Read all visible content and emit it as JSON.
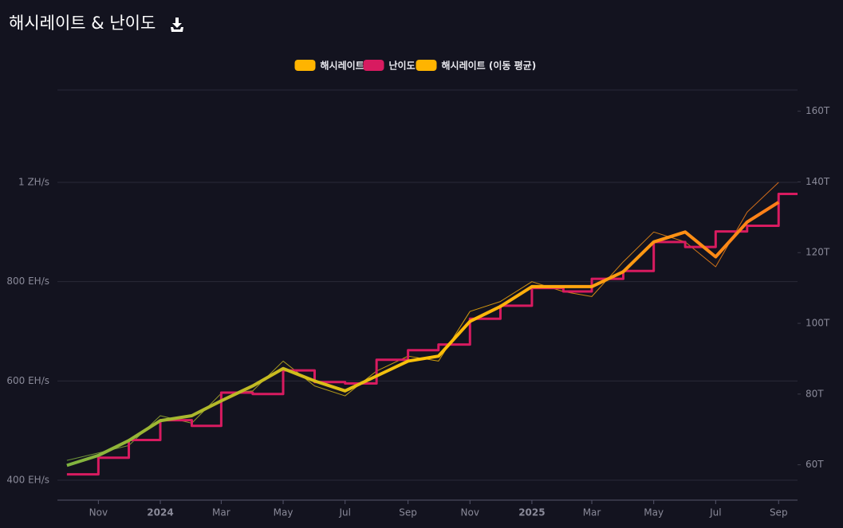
{
  "chart_data": {
    "type": "line",
    "title": "해시레이트 & 난이도",
    "x": [
      "2023-10",
      "2023-11",
      "2023-12",
      "2024-01",
      "2024-02",
      "2024-03",
      "2024-04",
      "2024-05",
      "2024-06",
      "2024-07",
      "2024-08",
      "2024-09",
      "2024-10",
      "2024-11",
      "2024-12",
      "2025-01",
      "2025-02",
      "2025-03",
      "2025-04",
      "2025-05",
      "2025-06",
      "2025-07",
      "2025-08",
      "2025-09"
    ],
    "series": [
      {
        "name": "해시레이트",
        "color": "#ffb400",
        "width": 1,
        "values": [
          440,
          455,
          470,
          530,
          515,
          575,
          580,
          640,
          590,
          570,
          620,
          650,
          640,
          740,
          760,
          800,
          780,
          770,
          840,
          900,
          880,
          830,
          940,
          1000
        ]
      },
      {
        "name": "난이도",
        "color": "#d81b60",
        "axis": "y2",
        "step": true,
        "width": 3,
        "values": [
          57.3,
          62,
          67,
          72.6,
          71,
          80.4,
          80,
          86.7,
          83.4,
          83,
          89.7,
          92.4,
          94,
          101.3,
          105,
          110,
          109,
          112.6,
          114.8,
          123,
          121.6,
          126,
          127.6,
          136.6
        ]
      },
      {
        "name": "해시레이트 (이동 평균)",
        "color": "#ffb400",
        "width": 4,
        "values": [
          430,
          450,
          480,
          520,
          530,
          560,
          590,
          625,
          600,
          580,
          610,
          640,
          650,
          720,
          750,
          790,
          790,
          790,
          820,
          880,
          900,
          850,
          920,
          960
        ]
      }
    ],
    "line_gradient": [
      "#7cb342",
      "#ffc107",
      "#ff7a1a"
    ],
    "ylim": [
      360,
      1186
    ],
    "yticks": [
      {
        "value": 400,
        "label": "400 EH/s"
      },
      {
        "value": 600,
        "label": "600 EH/s"
      },
      {
        "value": 800,
        "label": "800 EH/s"
      },
      {
        "value": 1000,
        "label": "1 ZH/s"
      }
    ],
    "y2lim": [
      50,
      166
    ],
    "y2ticks": [
      {
        "value": 60,
        "label": "60T"
      },
      {
        "value": 80,
        "label": "80T"
      },
      {
        "value": 100,
        "label": "100T"
      },
      {
        "value": 120,
        "label": "120T"
      },
      {
        "value": 140,
        "label": "140T"
      },
      {
        "value": 160,
        "label": "160T"
      }
    ],
    "xticks": [
      {
        "value": "2023-11",
        "label": "Nov"
      },
      {
        "value": "2024-01",
        "label": "2024"
      },
      {
        "value": "2024-03",
        "label": "Mar"
      },
      {
        "value": "2024-05",
        "label": "May"
      },
      {
        "value": "2024-07",
        "label": "Jul"
      },
      {
        "value": "2024-09",
        "label": "Sep"
      },
      {
        "value": "2024-11",
        "label": "Nov"
      },
      {
        "value": "2025-01",
        "label": "2025"
      },
      {
        "value": "2025-03",
        "label": "Mar"
      },
      {
        "value": "2025-05",
        "label": "May"
      },
      {
        "value": "2025-07",
        "label": "Jul"
      },
      {
        "value": "2025-09",
        "label": "Sep"
      }
    ],
    "grid": true
  }
}
